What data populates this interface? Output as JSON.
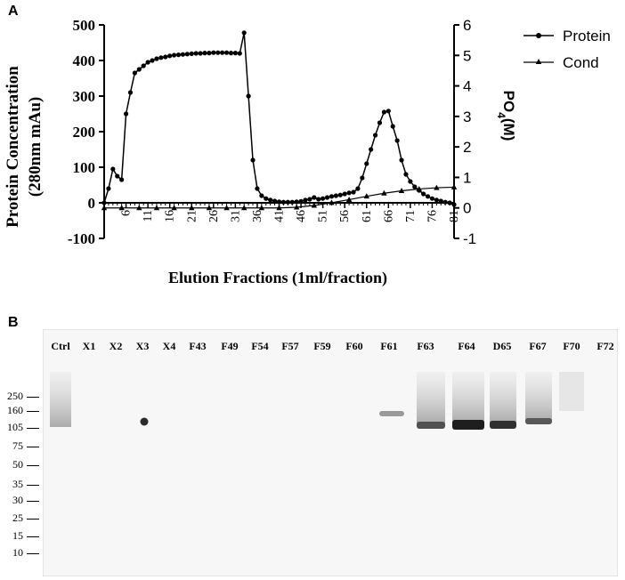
{
  "panel_a": {
    "label": "A"
  },
  "panel_b": {
    "label": "B"
  },
  "chart_data": {
    "type": "line",
    "xlabel": "Elution Fractions (1ml/fraction)",
    "ylabel": "Protein  Concentration",
    "ylabel_line2": "(280nm mAu)",
    "y2label": "PO",
    "y2label_sub": "4",
    "y2label_suffix": "(M)",
    "x_ticks": [
      "6",
      "11",
      "16",
      "21",
      "26",
      "31",
      "36",
      "41",
      "46",
      "51",
      "56",
      "61",
      "66",
      "71",
      "76",
      "81"
    ],
    "xlim": [
      1,
      81
    ],
    "ylim": [
      -100,
      500
    ],
    "y_ticks": [
      "-100",
      "0",
      "100",
      "200",
      "300",
      "400",
      "500"
    ],
    "y2lim": [
      -1,
      6
    ],
    "y2_ticks": [
      "-1",
      "0",
      "1",
      "2",
      "3",
      "4",
      "5",
      "6"
    ],
    "grid": false,
    "legend_position": "top-right",
    "series": [
      {
        "name": "Protein",
        "marker": "circle",
        "axis": "left",
        "x": [
          1,
          2,
          3,
          4,
          5,
          6,
          7,
          8,
          9,
          10,
          11,
          12,
          13,
          14,
          15,
          16,
          17,
          18,
          19,
          20,
          21,
          22,
          23,
          24,
          25,
          26,
          27,
          28,
          29,
          30,
          31,
          32,
          33,
          34,
          35,
          36,
          37,
          38,
          39,
          40,
          41,
          42,
          43,
          44,
          45,
          46,
          47,
          48,
          49,
          50,
          51,
          52,
          53,
          54,
          55,
          56,
          57,
          58,
          59,
          60,
          61,
          62,
          63,
          64,
          65,
          66,
          67,
          68,
          69,
          70,
          71,
          72,
          73,
          74,
          75,
          76,
          77,
          78,
          79,
          80,
          81
        ],
        "y": [
          0,
          40,
          95,
          75,
          65,
          250,
          310,
          365,
          375,
          385,
          395,
          400,
          405,
          408,
          410,
          413,
          415,
          416,
          417,
          418,
          419,
          420,
          420,
          421,
          421,
          422,
          422,
          422,
          422,
          421,
          421,
          420,
          478,
          300,
          120,
          40,
          20,
          12,
          8,
          5,
          3,
          2,
          2,
          2,
          3,
          4,
          8,
          10,
          15,
          10,
          12,
          15,
          18,
          20,
          22,
          25,
          28,
          30,
          40,
          70,
          110,
          150,
          190,
          225,
          255,
          258,
          215,
          175,
          120,
          80,
          60,
          45,
          35,
          25,
          18,
          12,
          8,
          5,
          2,
          0,
          -5
        ]
      },
      {
        "name": "Cond",
        "marker": "triangle",
        "axis": "right",
        "x": [
          1,
          5,
          9,
          13,
          17,
          21,
          25,
          29,
          33,
          37,
          41,
          45,
          49,
          53,
          57,
          61,
          65,
          69,
          73,
          77,
          81
        ],
        "y": [
          0,
          0,
          0,
          0,
          0,
          0,
          0,
          0,
          0,
          0,
          0,
          0.02,
          0.08,
          0.17,
          0.27,
          0.38,
          0.48,
          0.56,
          0.62,
          0.66,
          0.68
        ]
      }
    ]
  },
  "blot": {
    "lanes": [
      "Ctrl",
      "X1",
      "X2",
      "X3",
      "X4",
      "F43",
      "F49",
      "F54",
      "F57",
      "F59",
      "F60",
      "F61",
      "F63",
      "F64",
      "D65",
      "F67",
      "F70",
      "F72"
    ],
    "markers": [
      "250",
      "160",
      "105",
      "75",
      "50",
      "35",
      "30",
      "25",
      "15",
      "10"
    ]
  }
}
